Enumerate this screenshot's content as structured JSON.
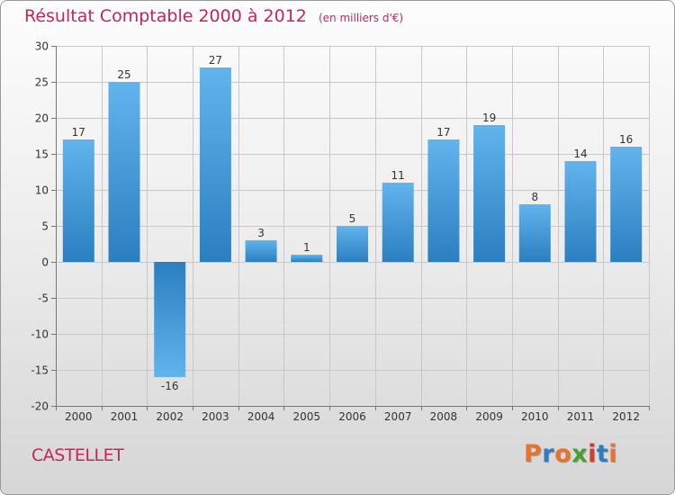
{
  "header": {
    "title": "Résultat Comptable 2000 à 2012",
    "unit": "(en milliers d'€)"
  },
  "footer": {
    "commune": "CASTELLET",
    "brand": "Proxiti",
    "brand_colors": [
      "#e8732a",
      "#2e7cc4",
      "#e8732a",
      "#4aa02c",
      "#d63c2e",
      "#2e7cc4",
      "#e8732a"
    ]
  },
  "colors": {
    "bar_light": "#61b4ec",
    "bar_dark": "#2b7fc0",
    "title": "#c8245a",
    "grid": "#c8c8c8"
  },
  "chart_data": {
    "type": "bar",
    "title": "Résultat Comptable 2000 à 2012",
    "xlabel": "",
    "ylabel": "",
    "categories": [
      "2000",
      "2001",
      "2002",
      "2003",
      "2004",
      "2005",
      "2006",
      "2007",
      "2008",
      "2009",
      "2010",
      "2011",
      "2012"
    ],
    "values": [
      17,
      25,
      -16,
      27,
      3,
      1,
      5,
      11,
      17,
      19,
      8,
      14,
      16
    ],
    "ylim": [
      -20,
      30
    ],
    "yticks": [
      -20,
      -15,
      -10,
      -5,
      0,
      5,
      10,
      15,
      20,
      25,
      30
    ],
    "grid": true
  }
}
